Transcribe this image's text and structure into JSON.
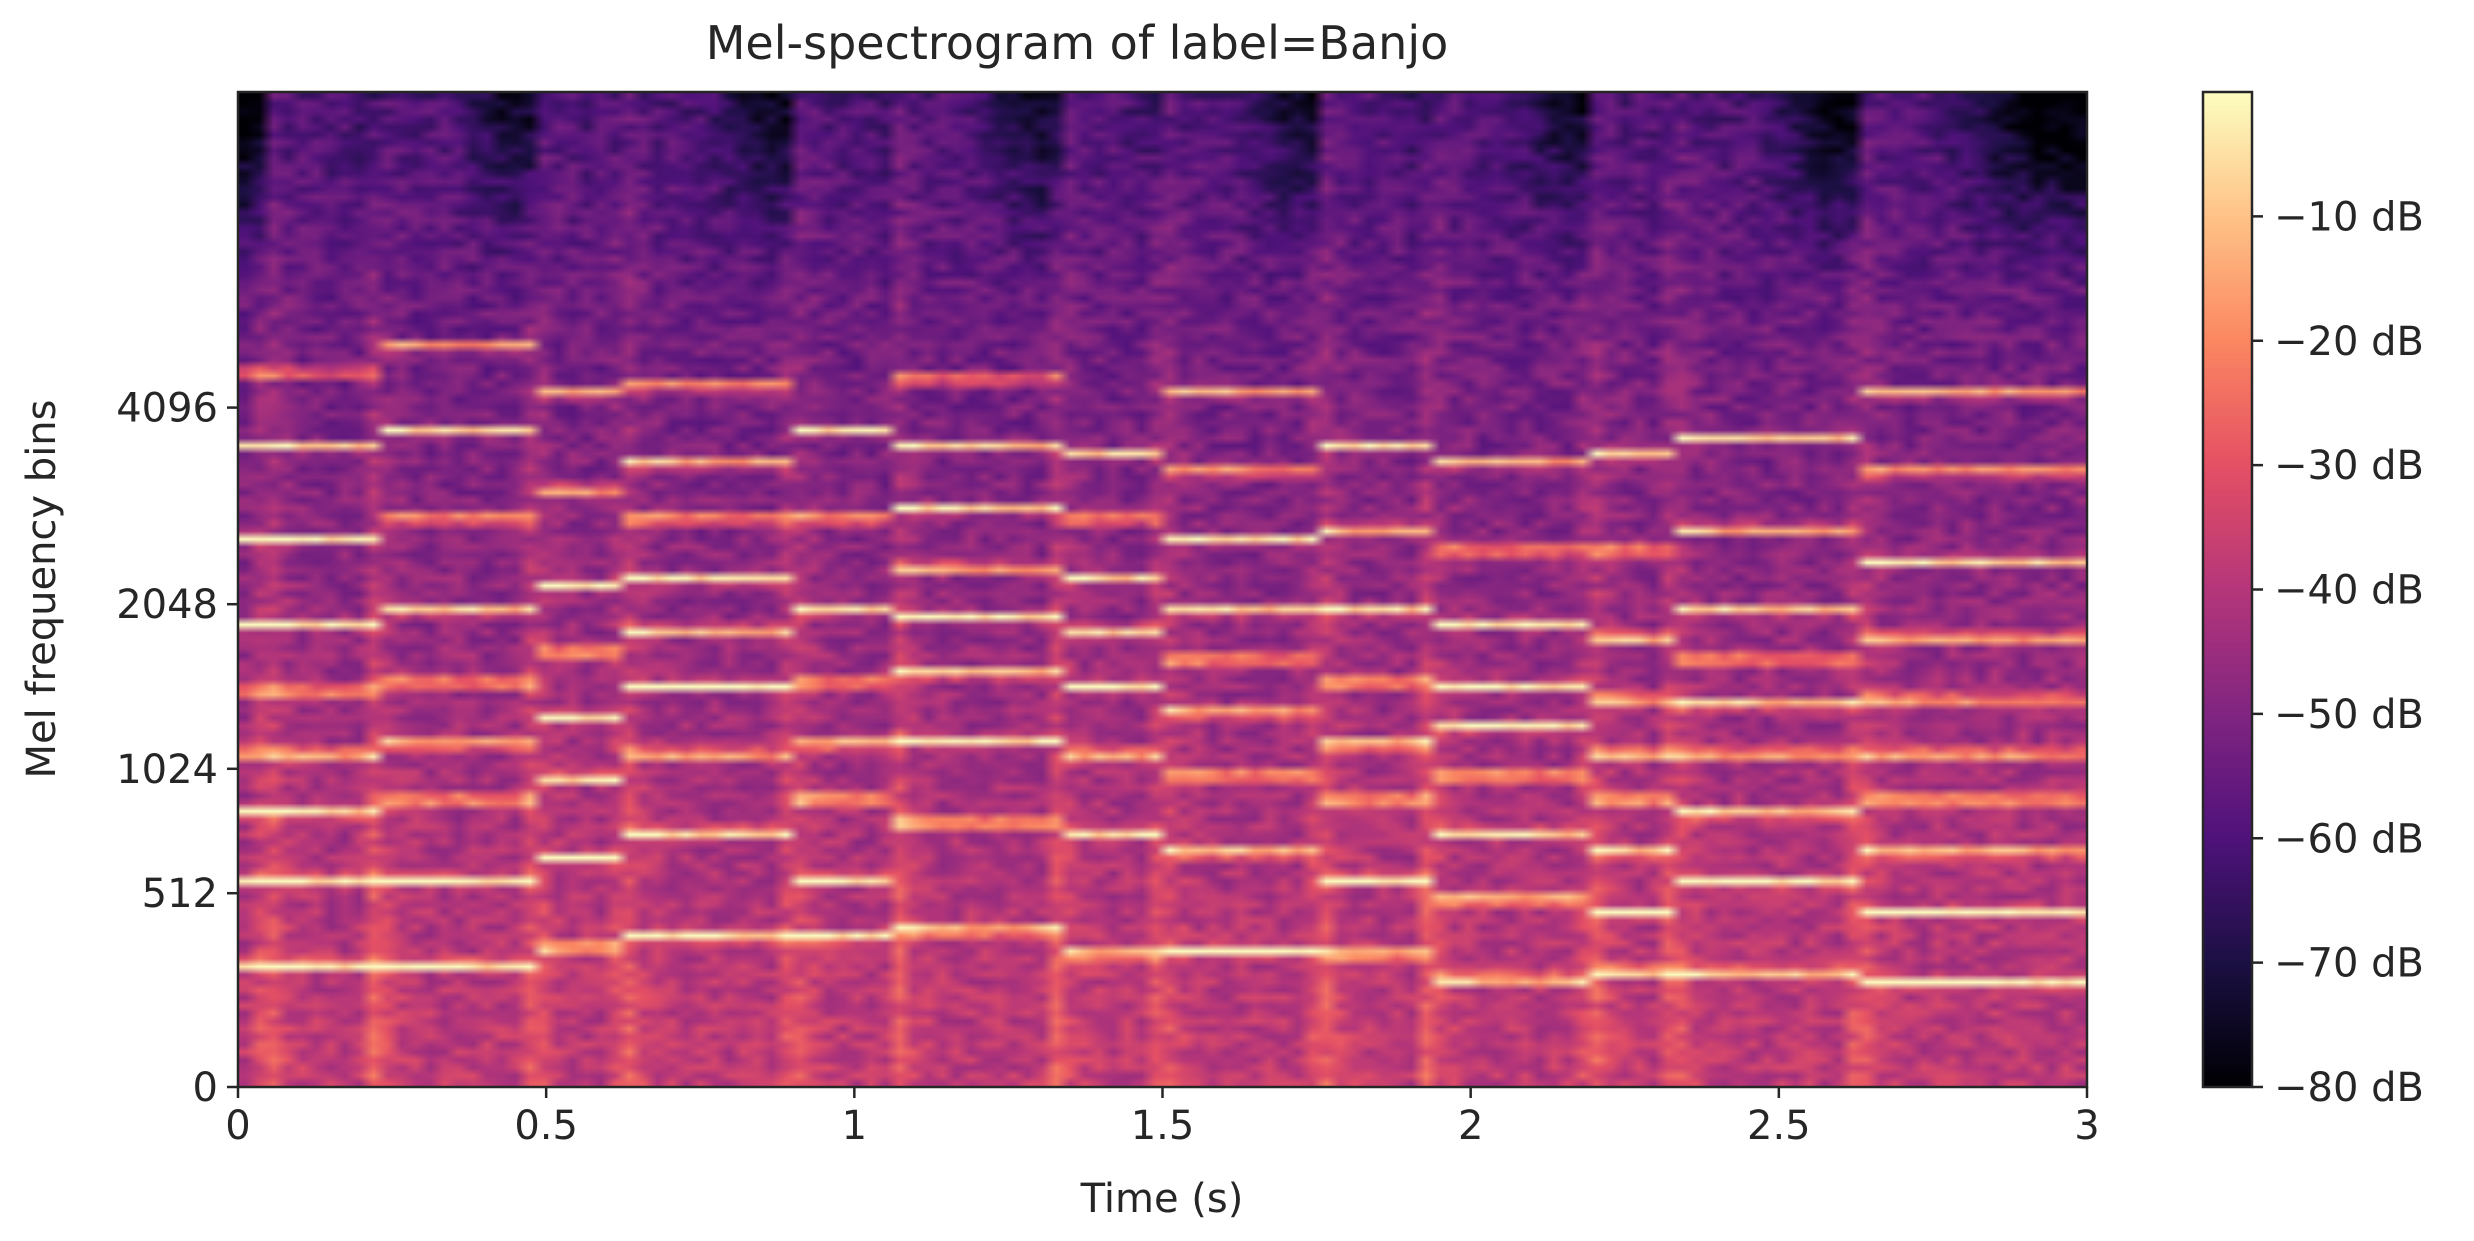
{
  "chart_data": {
    "type": "heatmap",
    "title": "Mel-spectrogram of label=Banjo",
    "xlabel": "Time (s)",
    "ylabel": "Mel frequency bins",
    "xlim": [
      0,
      3
    ],
    "x_ticks": [
      {
        "value": 0,
        "label": "0"
      },
      {
        "value": 0.5,
        "label": "0.5"
      },
      {
        "value": 1,
        "label": "1"
      },
      {
        "value": 1.5,
        "label": "1.5"
      },
      {
        "value": 2,
        "label": "2"
      },
      {
        "value": 2.5,
        "label": "2.5"
      },
      {
        "value": 3,
        "label": "3"
      }
    ],
    "y_scale": "mel",
    "y_ticks": [
      {
        "value": 0,
        "label": "0"
      },
      {
        "value": 512,
        "label": "512"
      },
      {
        "value": 1024,
        "label": "1024"
      },
      {
        "value": 2048,
        "label": "2048"
      },
      {
        "value": 4096,
        "label": "4096"
      }
    ],
    "colormap": "magma",
    "colorbar": {
      "range": [
        -80,
        0
      ],
      "ticks": [
        {
          "value": -10,
          "label": "−10 dB"
        },
        {
          "value": -20,
          "label": "−20 dB"
        },
        {
          "value": -30,
          "label": "−30 dB"
        },
        {
          "value": -40,
          "label": "−40 dB"
        },
        {
          "value": -50,
          "label": "−50 dB"
        },
        {
          "value": -60,
          "label": "−60 dB"
        },
        {
          "value": -70,
          "label": "−70 dB"
        },
        {
          "value": -80,
          "label": "−80 dB"
        }
      ]
    },
    "note_onsets_s": [
      0.05,
      0.22,
      0.48,
      0.63,
      0.9,
      1.07,
      1.33,
      1.5,
      1.76,
      1.93,
      2.2,
      2.33,
      2.63
    ],
    "harmonic_bands_hz": [
      {
        "start": 0.0,
        "end": 0.22,
        "bands": [
          290,
          560,
          820,
          1100,
          1450,
          1900,
          2600,
          3600,
          4600
        ]
      },
      {
        "start": 0.22,
        "end": 0.48,
        "bands": [
          290,
          560,
          880,
          1150,
          1500,
          2000,
          2800,
          3800,
          5000
        ]
      },
      {
        "start": 0.48,
        "end": 0.63,
        "bands": [
          340,
          640,
          980,
          1300,
          1700,
          2200,
          3100,
          4300
        ]
      },
      {
        "start": 0.63,
        "end": 0.9,
        "bands": [
          370,
          740,
          1100,
          1480,
          1850,
          2250,
          2800,
          3400,
          4400
        ]
      },
      {
        "start": 0.9,
        "end": 1.07,
        "bands": [
          370,
          560,
          880,
          1150,
          1500,
          2000,
          2800,
          3800
        ]
      },
      {
        "start": 1.07,
        "end": 1.33,
        "bands": [
          390,
          780,
          1170,
          1560,
          1950,
          2350,
          2900,
          3600,
          4500
        ]
      },
      {
        "start": 1.33,
        "end": 1.5,
        "bands": [
          320,
          740,
          1100,
          1480,
          1850,
          2250,
          2800,
          3500
        ]
      },
      {
        "start": 1.5,
        "end": 1.76,
        "bands": [
          330,
          660,
          990,
          1320,
          1650,
          2000,
          2600,
          3300,
          4300
        ]
      },
      {
        "start": 1.76,
        "end": 1.93,
        "bands": [
          320,
          560,
          880,
          1150,
          1500,
          2000,
          2700,
          3600
        ]
      },
      {
        "start": 1.93,
        "end": 2.2,
        "bands": [
          250,
          490,
          740,
          990,
          1240,
          1480,
          1900,
          2500,
          3400
        ]
      },
      {
        "start": 2.2,
        "end": 2.33,
        "bands": [
          270,
          450,
          660,
          880,
          1100,
          1400,
          1800,
          2500,
          3500
        ]
      },
      {
        "start": 2.33,
        "end": 2.63,
        "bands": [
          270,
          550,
          820,
          1100,
          1370,
          1650,
          2000,
          2700,
          3700
        ]
      },
      {
        "start": 2.63,
        "end": 3.0,
        "bands": [
          240,
          450,
          660,
          880,
          1100,
          1400,
          1800,
          2400,
          3300,
          4300
        ]
      }
    ]
  }
}
